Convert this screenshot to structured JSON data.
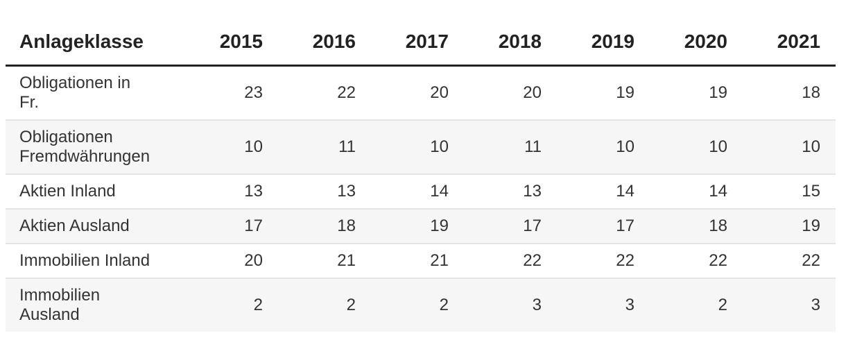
{
  "table": {
    "header": {
      "label_col": "Anlageklasse",
      "years": [
        "2015",
        "2016",
        "2017",
        "2018",
        "2019",
        "2020",
        "2021"
      ]
    },
    "rows": [
      {
        "label": "Obligationen in\nFr.",
        "values": [
          23,
          22,
          20,
          20,
          19,
          19,
          18
        ]
      },
      {
        "label": "Obligationen\nFremdwährungen",
        "values": [
          10,
          11,
          10,
          11,
          10,
          10,
          10
        ]
      },
      {
        "label": "Aktien Inland",
        "values": [
          13,
          13,
          14,
          13,
          14,
          14,
          15
        ]
      },
      {
        "label": "Aktien Ausland",
        "values": [
          17,
          18,
          19,
          17,
          17,
          18,
          19
        ]
      },
      {
        "label": "Immobilien Inland",
        "values": [
          20,
          21,
          21,
          22,
          22,
          22,
          22
        ]
      },
      {
        "label": "Immobilien\nAusland",
        "values": [
          2,
          2,
          2,
          3,
          3,
          2,
          3
        ]
      }
    ],
    "colors": {
      "header_text": "#222222",
      "body_text": "#333333",
      "alt_row_bg": "#f6f6f6",
      "row_separator": "#e4e4e4",
      "header_rule": "#222222"
    }
  },
  "chart_data": {
    "type": "table",
    "title": "",
    "row_header_label": "Anlageklasse",
    "categories": [
      "2015",
      "2016",
      "2017",
      "2018",
      "2019",
      "2020",
      "2021"
    ],
    "series": [
      {
        "name": "Obligationen in Fr.",
        "values": [
          23,
          22,
          20,
          20,
          19,
          19,
          18
        ]
      },
      {
        "name": "Obligationen Fremdwährungen",
        "values": [
          10,
          11,
          10,
          11,
          10,
          10,
          10
        ]
      },
      {
        "name": "Aktien Inland",
        "values": [
          13,
          13,
          14,
          13,
          14,
          14,
          15
        ]
      },
      {
        "name": "Aktien Ausland",
        "values": [
          17,
          18,
          19,
          17,
          17,
          18,
          19
        ]
      },
      {
        "name": "Immobilien Inland",
        "values": [
          20,
          21,
          21,
          22,
          22,
          22,
          22
        ]
      },
      {
        "name": "Immobilien Ausland",
        "values": [
          2,
          2,
          2,
          3,
          3,
          2,
          3
        ]
      }
    ]
  }
}
